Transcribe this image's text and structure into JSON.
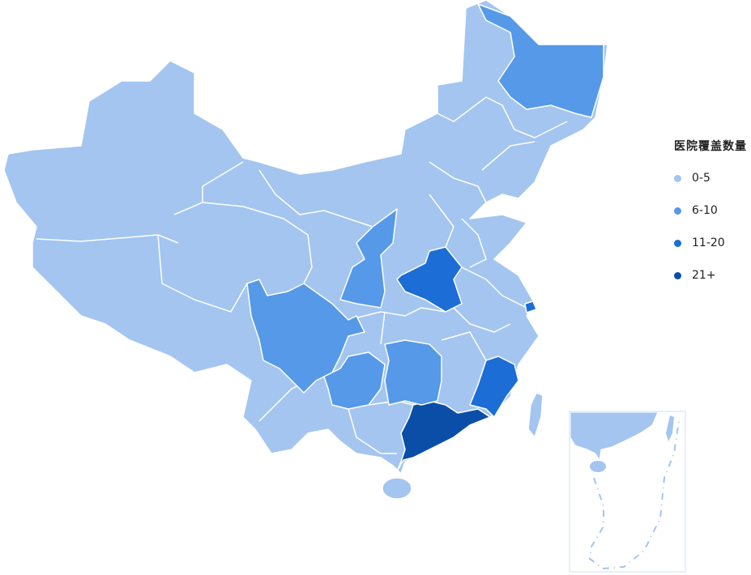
{
  "legend": {
    "title": "医院覆盖数量",
    "items": [
      {
        "label": "0-5",
        "color": "#a3c5f0"
      },
      {
        "label": "6-10",
        "color": "#5599e8"
      },
      {
        "label": "11-20",
        "color": "#1c6dd6"
      },
      {
        "label": "21+",
        "color": "#0a4ea8"
      }
    ]
  },
  "regions": [
    {
      "name": "heilongjiang",
      "level": "6-10",
      "color": "#5599e8"
    },
    {
      "name": "sichuan",
      "level": "6-10",
      "color": "#5599e8"
    },
    {
      "name": "shaanxi",
      "level": "6-10",
      "color": "#5599e8"
    },
    {
      "name": "guizhou",
      "level": "6-10",
      "color": "#5599e8"
    },
    {
      "name": "hunan",
      "level": "6-10",
      "color": "#5599e8"
    },
    {
      "name": "henan",
      "level": "11-20",
      "color": "#1c6dd6"
    },
    {
      "name": "shanghai",
      "level": "11-20",
      "color": "#1c6dd6"
    },
    {
      "name": "fujian",
      "level": "11-20",
      "color": "#1c6dd6"
    },
    {
      "name": "guangdong",
      "level": "21+",
      "color": "#0a4ea8"
    }
  ],
  "base_color": "#a3c5f0",
  "border_color": "#ffffff"
}
